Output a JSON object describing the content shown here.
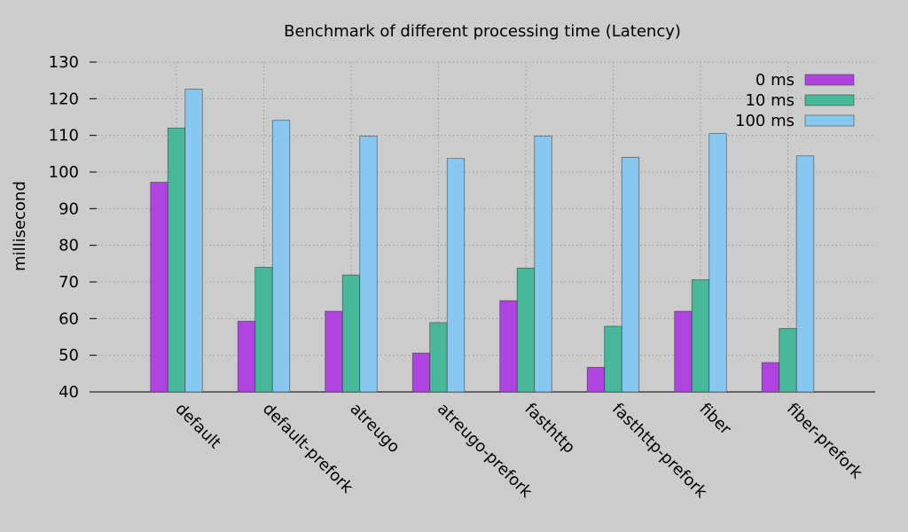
{
  "chart_data": {
    "type": "bar",
    "title": "Benchmark of different processing time (Latency)",
    "xlabel": "",
    "ylabel": "millisecond",
    "ylim": [
      40,
      130
    ],
    "yticks": [
      40,
      50,
      60,
      70,
      80,
      90,
      100,
      110,
      120,
      130
    ],
    "grid": true,
    "legend_position": "top-right",
    "categories": [
      "default",
      "default-prefork",
      "atreugo",
      "atreugo-prefork",
      "fasthttp",
      "fasthttp-prefork",
      "fiber",
      "fiber-prefork"
    ],
    "series": [
      {
        "name": "0 ms",
        "color": "#b044e0",
        "values": [
          97.2,
          59.3,
          62.0,
          50.6,
          64.9,
          46.7,
          62.0,
          48.0
        ]
      },
      {
        "name": "10 ms",
        "color": "#48b89a",
        "values": [
          112.0,
          74.0,
          71.9,
          58.9,
          73.8,
          57.9,
          70.6,
          57.3
        ]
      },
      {
        "name": "100 ms",
        "color": "#88c8f0",
        "values": [
          122.6,
          114.1,
          109.8,
          103.7,
          109.8,
          104.0,
          110.5,
          104.4
        ]
      }
    ]
  }
}
